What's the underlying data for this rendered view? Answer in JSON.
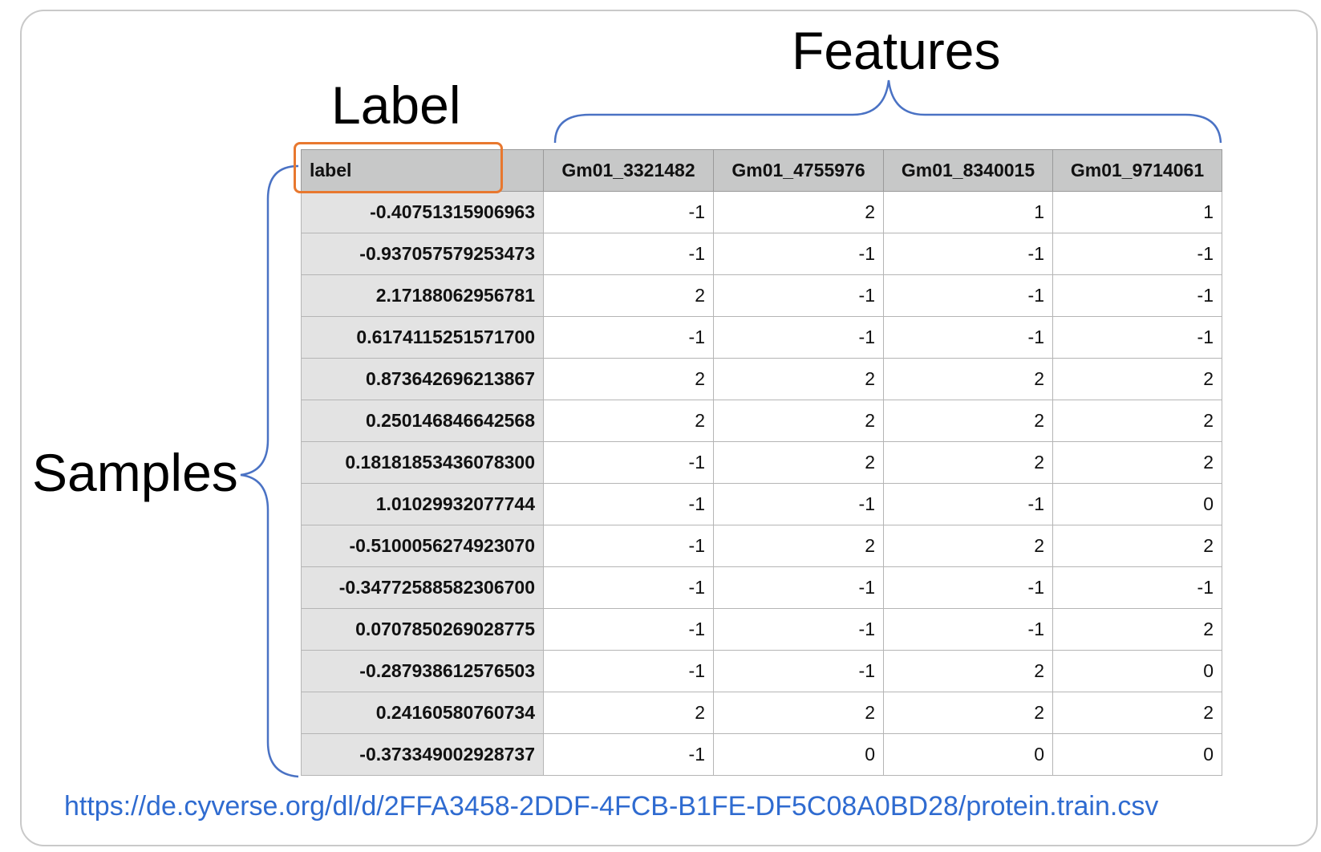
{
  "titles": {
    "features": "Features",
    "label": "Label",
    "samples": "Samples"
  },
  "table": {
    "header_label": "label",
    "feature_columns": [
      "Gm01_3321482",
      "Gm01_4755976",
      "Gm01_8340015",
      "Gm01_9714061"
    ],
    "rows": [
      {
        "label": "-0.40751315906963",
        "values": [
          "-1",
          "2",
          "1",
          "1"
        ]
      },
      {
        "label": "-0.937057579253473",
        "values": [
          "-1",
          "-1",
          "-1",
          "-1"
        ]
      },
      {
        "label": "2.17188062956781",
        "values": [
          "2",
          "-1",
          "-1",
          "-1"
        ]
      },
      {
        "label": "0.6174115251571700",
        "values": [
          "-1",
          "-1",
          "-1",
          "-1"
        ]
      },
      {
        "label": "0.873642696213867",
        "values": [
          "2",
          "2",
          "2",
          "2"
        ]
      },
      {
        "label": "0.250146846642568",
        "values": [
          "2",
          "2",
          "2",
          "2"
        ]
      },
      {
        "label": "0.18181853436078300",
        "values": [
          "-1",
          "2",
          "2",
          "2"
        ]
      },
      {
        "label": "1.01029932077744",
        "values": [
          "-1",
          "-1",
          "-1",
          "0"
        ]
      },
      {
        "label": "-0.5100056274923070",
        "values": [
          "-1",
          "2",
          "2",
          "2"
        ]
      },
      {
        "label": "-0.34772588582306700",
        "values": [
          "-1",
          "-1",
          "-1",
          "-1"
        ]
      },
      {
        "label": "0.0707850269028775",
        "values": [
          "-1",
          "-1",
          "-1",
          "2"
        ]
      },
      {
        "label": "-0.287938612576503",
        "values": [
          "-1",
          "-1",
          "2",
          "0"
        ]
      },
      {
        "label": "0.24160580760734",
        "values": [
          "2",
          "2",
          "2",
          "2"
        ]
      },
      {
        "label": "-0.373349002928737",
        "values": [
          "-1",
          "0",
          "0",
          "0"
        ]
      }
    ]
  },
  "source_url": "https://de.cyverse.org/dl/d/2FFA3458-2DDF-4FCB-B1FE-DF5C08A0BD28/protein.train.csv",
  "colors": {
    "bracket": "#4a72c4",
    "highlight_box": "#e8782f",
    "header_bg": "#c7c8c8",
    "label_col_bg": "#e3e3e3",
    "link": "#2f6bd0"
  }
}
